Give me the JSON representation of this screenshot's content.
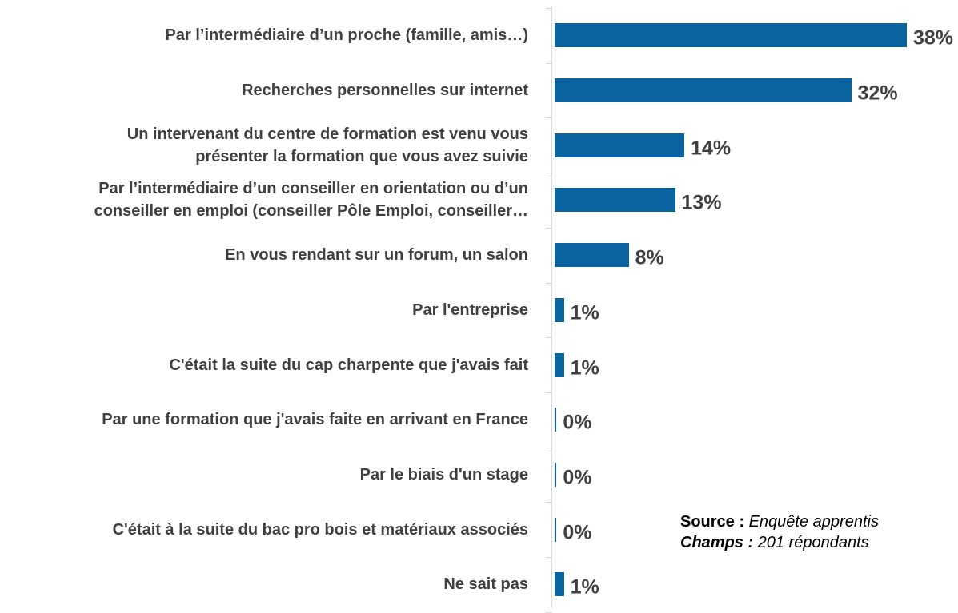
{
  "chart_data": {
    "type": "bar",
    "orientation": "horizontal",
    "categories": [
      "Par l’intermédiaire d’un proche (famille, amis…)",
      "Recherches personnelles sur internet",
      "Un intervenant du centre de formation est venu vous\nprésenter la formation que vous avez suivie",
      "Par l’intermédiaire d’un conseiller en orientation ou d’un\nconseiller en emploi (conseiller Pôle Emploi, conseiller…",
      "En vous rendant sur un forum, un salon",
      "Par l'entreprise",
      "C'était la suite du cap charpente que j'avais fait",
      "Par une formation que j'avais faite en arrivant en France",
      "Par le biais d'un stage",
      "C'était à la suite du bac pro bois et matériaux associés",
      "Ne sait pas"
    ],
    "values": [
      38,
      32,
      14,
      13,
      8,
      1,
      1,
      0.2,
      0.2,
      0.2,
      1
    ],
    "value_labels": [
      "38%",
      "32%",
      "14%",
      "13%",
      "8%",
      "1%",
      "1%",
      "0%",
      "0%",
      "0%",
      "1%"
    ],
    "color": "#0b64a0",
    "xlim": [
      0,
      38
    ],
    "annotation": {
      "source_label": "Source :",
      "source_text": "Enquête apprentis",
      "fields_label": "Champs :",
      "fields_text": "201 répondants"
    }
  }
}
